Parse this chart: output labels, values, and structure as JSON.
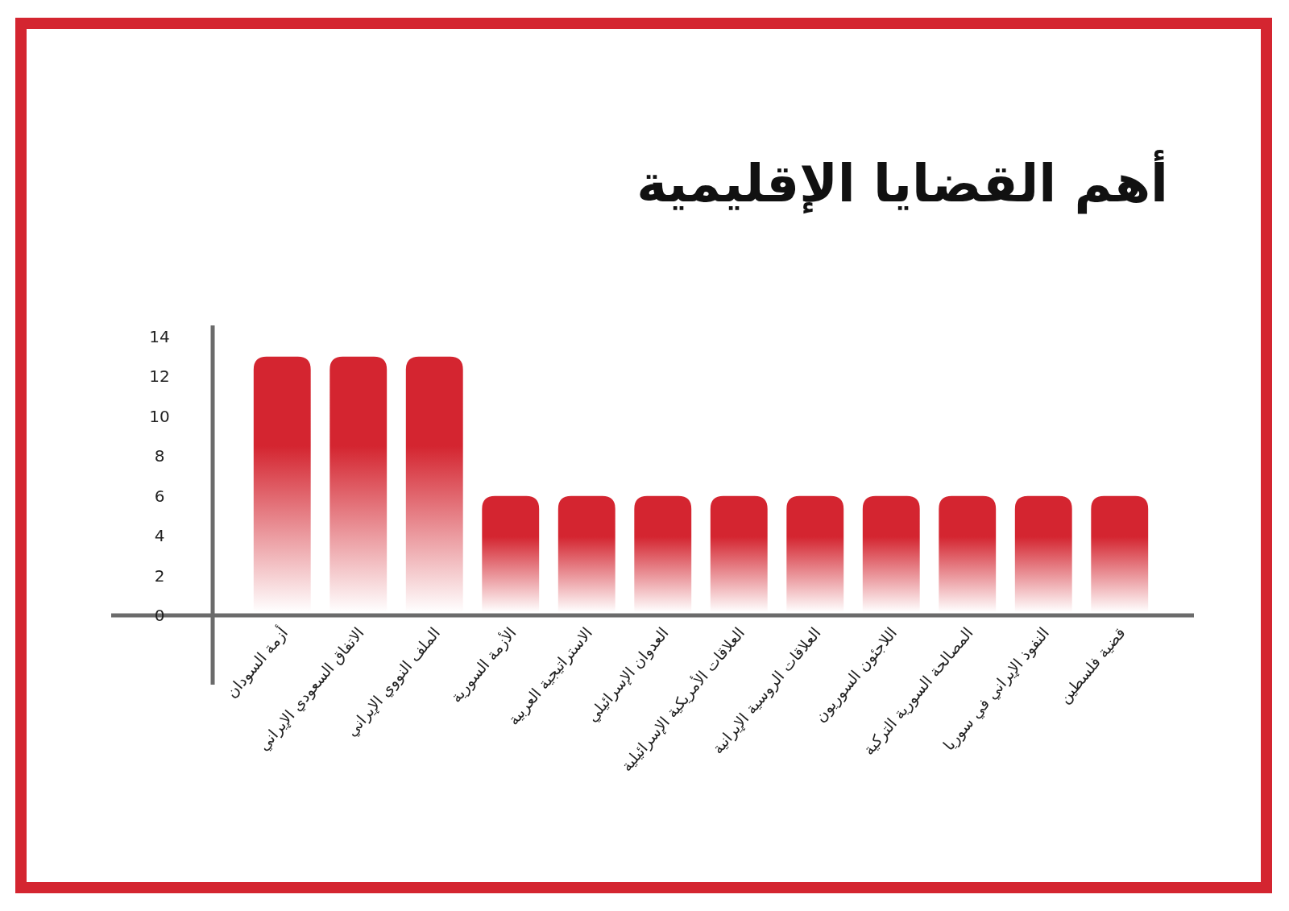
{
  "chart_data": {
    "type": "bar",
    "title": "أهم القضايا الإقليمية",
    "categories": [
      "أزمة السودان",
      "الاتفاق السعودي الإيراني",
      "الملف النووي الإيراني",
      "الأزمة السورية",
      "الاستراتيجية العربية",
      "العدوان الإسرائيلي",
      "العلاقات الأمريكية الإسرائيلية",
      "العلاقات الروسية الإيرانية",
      "اللاجئون السوريون",
      "المصالحة السورية التركية",
      "النفوذ الإيراني في سوريا",
      "قضية فلسطين"
    ],
    "values": [
      13,
      13,
      13,
      6,
      6,
      6,
      6,
      6,
      6,
      6,
      6,
      6
    ],
    "color": "#d42530",
    "ylim": [
      0,
      14
    ],
    "yticks": [
      0,
      2,
      4,
      6,
      8,
      10,
      12,
      14
    ],
    "grid": false
  }
}
